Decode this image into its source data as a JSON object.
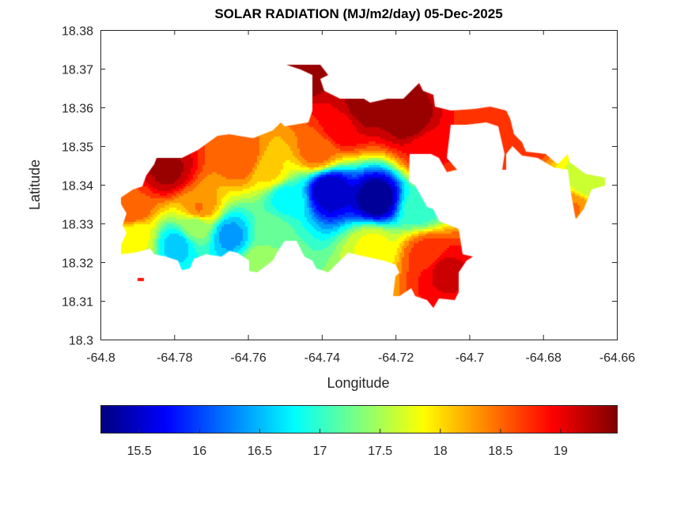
{
  "chart_data": {
    "type": "heatmap",
    "subtype": "filled-contour-map",
    "title": "SOLAR RADIATION (MJ/m2/day) 05-Dec-2025",
    "xlabel": "Longitude",
    "ylabel": "Latitude",
    "xlim": [
      -64.8,
      -64.66
    ],
    "ylim": [
      18.3,
      18.38
    ],
    "xticks": [
      "-64.8",
      "-64.78",
      "-64.76",
      "-64.74",
      "-64.72",
      "-64.7",
      "-64.68",
      "-64.66"
    ],
    "yticks": [
      "18.3",
      "18.31",
      "18.32",
      "18.33",
      "18.34",
      "18.35",
      "18.36",
      "18.37",
      "18.38"
    ],
    "colormap": "jet",
    "colorbar": {
      "orientation": "horizontal",
      "location": "bottom",
      "range": [
        15.18,
        19.47
      ],
      "ticks": [
        "15.5",
        "16",
        "16.5",
        "17",
        "17.5",
        "18",
        "18.5",
        "19"
      ]
    },
    "grid": false,
    "field_points": [
      {
        "lon": -64.7254,
        "lat": 18.3367,
        "value": 15.2
      },
      {
        "lon": -64.7383,
        "lat": 18.3388,
        "value": 15.4
      },
      {
        "lon": -64.7651,
        "lat": 18.3272,
        "value": 16.4
      },
      {
        "lon": -64.7796,
        "lat": 18.3249,
        "value": 16.6
      },
      {
        "lon": -64.7286,
        "lat": 18.3602,
        "value": 19.4
      },
      {
        "lon": -64.7168,
        "lat": 18.3571,
        "value": 19.4
      },
      {
        "lon": -64.7447,
        "lat": 18.3698,
        "value": 19.4
      },
      {
        "lon": -64.7822,
        "lat": 18.3439,
        "value": 19.3
      },
      {
        "lon": -64.7072,
        "lat": 18.3184,
        "value": 19.1
      },
      {
        "lon": -64.6986,
        "lat": 18.3571,
        "value": 18.8
      },
      {
        "lon": -64.6686,
        "lat": 18.3408,
        "value": 17.6
      },
      {
        "lon": -64.6718,
        "lat": 18.3343,
        "value": 18.4
      },
      {
        "lon": -64.7618,
        "lat": 18.3469,
        "value": 18.6
      },
      {
        "lon": -64.7543,
        "lat": 18.3439,
        "value": 18.0
      },
      {
        "lon": -64.75,
        "lat": 18.3367,
        "value": 16.8
      },
      {
        "lon": -64.7136,
        "lat": 18.3343,
        "value": 17.0
      },
      {
        "lon": -64.7908,
        "lat": 18.3265,
        "value": 17.8
      },
      {
        "lon": -64.7919,
        "lat": 18.3343,
        "value": 18.6
      },
      {
        "lon": -64.7265,
        "lat": 18.3245,
        "value": 17.8
      },
      {
        "lon": -64.7115,
        "lat": 18.3225,
        "value": 18.7
      },
      {
        "lon": -64.7415,
        "lat": 18.349,
        "value": 18.5
      },
      {
        "lon": -64.735,
        "lat": 18.3551,
        "value": 19.0
      },
      {
        "lon": -64.7736,
        "lat": 18.3343,
        "value": 18.4
      },
      {
        "lon": -64.7747,
        "lat": 18.3296,
        "value": 17.4
      },
      {
        "lon": -64.7543,
        "lat": 18.3286,
        "value": 17.2
      },
      {
        "lon": -64.7115,
        "lat": 18.349,
        "value": 18.9
      },
      {
        "lon": -64.6857,
        "lat": 18.3541,
        "value": 18.8
      },
      {
        "lon": -64.7565,
        "lat": 18.3204,
        "value": 17.5
      }
    ]
  }
}
